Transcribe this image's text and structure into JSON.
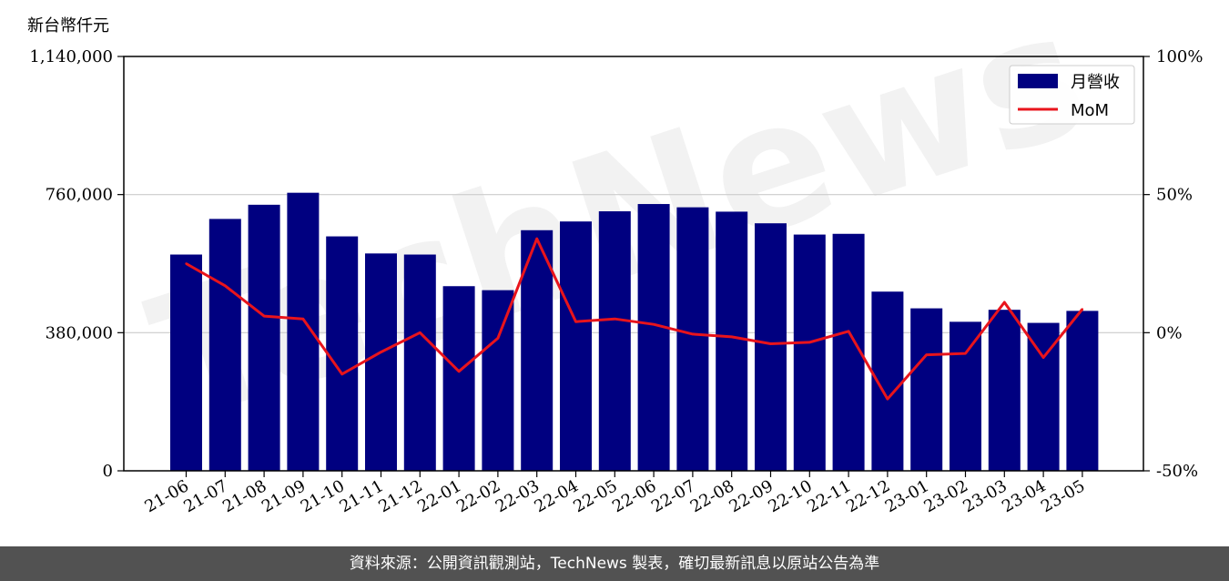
{
  "unit_label": "新台幣仟元",
  "footer_text": "資料來源：公開資訊觀測站，TechNews 製表，確切最新訊息以原站公告為準",
  "watermark_text": "TechNews",
  "colors": {
    "bar": "#000080",
    "line": "#e8141c",
    "grid": "#cccccc",
    "footer_bg": "#525252"
  },
  "chart_data": {
    "type": "bar",
    "categories": [
      "21-06",
      "21-07",
      "21-08",
      "21-09",
      "21-10",
      "21-11",
      "21-12",
      "22-01",
      "22-02",
      "22-03",
      "22-04",
      "22-05",
      "22-06",
      "22-07",
      "22-08",
      "22-09",
      "22-10",
      "22-11",
      "22-12",
      "23-01",
      "23-02",
      "23-03",
      "23-04",
      "23-05"
    ],
    "series": [
      {
        "name": "月營收",
        "axis": "left",
        "type": "bar",
        "values": [
          595000,
          693000,
          732000,
          765000,
          645000,
          598000,
          595000,
          508000,
          497000,
          662000,
          686000,
          714000,
          734000,
          725000,
          713000,
          681000,
          650000,
          652000,
          493000,
          447000,
          410000,
          443000,
          407000,
          440000
        ]
      },
      {
        "name": "MoM",
        "axis": "right",
        "type": "line",
        "values": [
          25,
          17,
          6,
          5,
          -15,
          -7,
          0,
          -14,
          -2,
          34,
          4,
          5,
          3,
          -0.5,
          -1.5,
          -4,
          -3.5,
          0.5,
          -24,
          -8,
          -7.5,
          11,
          -9,
          8.5
        ]
      }
    ],
    "y_left": {
      "min": 0,
      "max": 1140000,
      "ticks": [
        0,
        380000,
        760000,
        1140000
      ],
      "tick_labels": [
        "0",
        "380,000",
        "760,000",
        "1,140,000"
      ]
    },
    "y_right": {
      "min": -50,
      "max": 100,
      "ticks": [
        -50,
        0,
        50,
        100
      ],
      "tick_labels": [
        "-50%",
        "0%",
        "50%",
        "100%"
      ]
    },
    "grid": "horizontal",
    "legend_position": "top-right"
  }
}
